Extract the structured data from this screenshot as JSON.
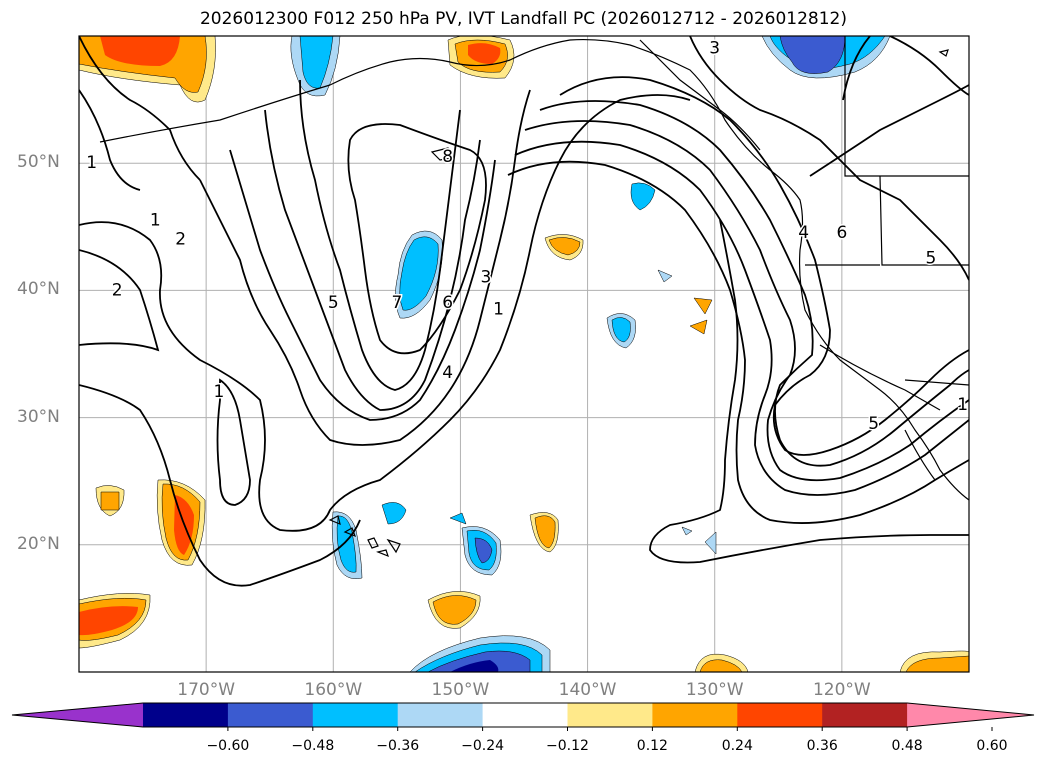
{
  "title": "2026012300 F012 250 hPa PV, IVT Landfall PC (2026012712 - 2026012812)",
  "map": {
    "lat_ticks": [
      {
        "value": 50,
        "label": "50°N"
      },
      {
        "value": 40,
        "label": "40°N"
      },
      {
        "value": 30,
        "label": "30°N"
      },
      {
        "value": 20,
        "label": "20°N"
      }
    ],
    "lon_ticks": [
      {
        "value": -170,
        "label": "170°W"
      },
      {
        "value": -160,
        "label": "160°W"
      },
      {
        "value": -150,
        "label": "150°W"
      },
      {
        "value": -140,
        "label": "140°W"
      },
      {
        "value": -130,
        "label": "130°W"
      },
      {
        "value": -120,
        "label": "120°W"
      }
    ],
    "lat_range": [
      10,
      60
    ],
    "lon_range": [
      -180,
      -110
    ],
    "grid": true,
    "pv_contour_labels": [
      {
        "text": "1",
        "lon": -179,
        "lat": 50
      },
      {
        "text": "1",
        "lon": -174,
        "lat": 45.5
      },
      {
        "text": "2",
        "lon": -172,
        "lat": 44
      },
      {
        "text": "2",
        "lon": -177,
        "lat": 40
      },
      {
        "text": "1",
        "lon": -169,
        "lat": 32
      },
      {
        "text": "5",
        "lon": -160,
        "lat": 39
      },
      {
        "text": "7",
        "lon": -155,
        "lat": 39
      },
      {
        "text": "6",
        "lon": -151,
        "lat": 39
      },
      {
        "text": "3",
        "lon": -148,
        "lat": 41
      },
      {
        "text": "1",
        "lon": -147,
        "lat": 38.5
      },
      {
        "text": "4",
        "lon": -151,
        "lat": 33.5
      },
      {
        "text": "8",
        "lon": -151,
        "lat": 50.5
      },
      {
        "text": "3",
        "lon": -130,
        "lat": 59
      },
      {
        "text": "4",
        "lon": -123,
        "lat": 44.5
      },
      {
        "text": "6",
        "lon": -120,
        "lat": 44.5
      },
      {
        "text": "5",
        "lon": -113,
        "lat": 42.5
      },
      {
        "text": "5",
        "lon": -117.5,
        "lat": 29.5
      },
      {
        "text": "1",
        "lon": -110.5,
        "lat": 31
      }
    ]
  },
  "colorbar": {
    "ticks": [
      "−0.60",
      "−0.48",
      "−0.36",
      "−0.24",
      "−0.12",
      "0.12",
      "0.24",
      "0.36",
      "0.48",
      "0.60"
    ],
    "colors": [
      "#9932cc",
      "#00008b",
      "#3b5bd0",
      "#00bfff",
      "#add8f5",
      "#ffffff",
      "#ffe98a",
      "#ffa500",
      "#ff4500",
      "#b22222",
      "#ff88aa"
    ]
  }
}
